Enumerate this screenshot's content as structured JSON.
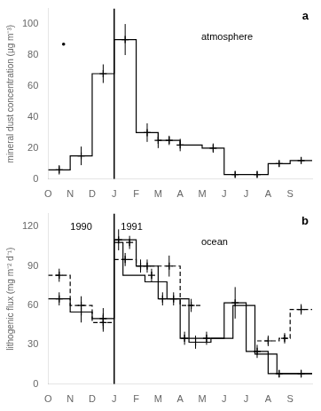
{
  "chart_data": [
    {
      "type": "line",
      "panel_label": "a",
      "ylabel": "mineral dust concentration (μg m⁻³)",
      "annotations": [
        {
          "text": "atmosphere"
        }
      ],
      "xlim": [
        0,
        12
      ],
      "xticks": [
        {
          "value": 0,
          "label": "O"
        },
        {
          "value": 1,
          "label": "N"
        },
        {
          "value": 2,
          "label": "D"
        },
        {
          "value": 3,
          "label": "J"
        },
        {
          "value": 4,
          "label": "F"
        },
        {
          "value": 5,
          "label": "M"
        },
        {
          "value": 6,
          "label": "A"
        },
        {
          "value": 7,
          "label": "M"
        },
        {
          "value": 8,
          "label": "J"
        },
        {
          "value": 9,
          "label": "J"
        },
        {
          "value": 10,
          "label": "A"
        },
        {
          "value": 11,
          "label": "S"
        }
      ],
      "ylim": [
        0,
        110
      ],
      "yticks": [
        0,
        20,
        40,
        60,
        80,
        100
      ],
      "grid": false,
      "color": "#000000",
      "series": [
        {
          "type": "line",
          "line_style": "solid",
          "x": [
            0,
            1,
            1,
            2,
            2,
            3,
            3,
            4,
            4,
            5,
            5,
            6,
            6,
            7,
            7,
            8,
            8,
            9,
            9,
            10,
            10,
            11,
            11,
            12
          ],
          "values": [
            6,
            6,
            15,
            15,
            68,
            68,
            90,
            90,
            30,
            30,
            25,
            25,
            22,
            22,
            20,
            20,
            3,
            3,
            3,
            3,
            10,
            10,
            12,
            12
          ]
        },
        {
          "type": "scatter",
          "marker": "plus",
          "x": [
            0.5,
            1.5,
            2.5,
            3.5,
            4.5,
            5.0,
            5.5,
            6.0,
            7.5,
            8.5,
            9.5,
            10.5,
            11.5
          ],
          "values": [
            6,
            15,
            68,
            90,
            30,
            25,
            25,
            22,
            20,
            3,
            3,
            10,
            12
          ],
          "error": [
            3,
            6,
            6,
            10,
            6,
            5,
            3,
            4,
            3,
            2,
            2,
            2,
            2
          ]
        },
        {
          "type": "scatter",
          "marker": "dot",
          "x": [
            0.7
          ],
          "values": [
            87
          ]
        },
        {
          "type": "vline",
          "x": [
            3.0
          ]
        }
      ]
    },
    {
      "type": "line",
      "panel_label": "b",
      "ylabel": "lithogenic flux (mg m⁻² d⁻¹)",
      "annotations": [
        {
          "text": "ocean"
        },
        {
          "text": "1990",
          "x": 1.5,
          "y": 123
        },
        {
          "text": "1991",
          "x": 3.8,
          "y": 123
        }
      ],
      "xlim": [
        0,
        12
      ],
      "xticks": [
        {
          "value": 0,
          "label": "O"
        },
        {
          "value": 1,
          "label": "N"
        },
        {
          "value": 2,
          "label": "D"
        },
        {
          "value": 3,
          "label": "J"
        },
        {
          "value": 4,
          "label": "F"
        },
        {
          "value": 5,
          "label": "M"
        },
        {
          "value": 6,
          "label": "A"
        },
        {
          "value": 7,
          "label": "M"
        },
        {
          "value": 8,
          "label": "J"
        },
        {
          "value": 9,
          "label": "J"
        },
        {
          "value": 10,
          "label": "A"
        },
        {
          "value": 11,
          "label": "S"
        }
      ],
      "ylim": [
        0,
        130
      ],
      "yticks": [
        0,
        30,
        60,
        90,
        120
      ],
      "grid": false,
      "color": "#000000",
      "series": [
        {
          "type": "line",
          "line_style": "solid",
          "x": [
            0,
            1,
            1,
            2,
            2,
            3,
            3,
            4,
            4,
            5,
            5,
            6,
            6,
            7,
            7,
            8,
            8,
            9,
            9,
            10,
            10,
            11,
            11,
            12
          ],
          "values": [
            65,
            65,
            55,
            55,
            50,
            50,
            110,
            110,
            90,
            90,
            65,
            65,
            35,
            35,
            35,
            35,
            62,
            62,
            25,
            25,
            8,
            8,
            8,
            8
          ]
        },
        {
          "type": "line",
          "line_style": "solid",
          "x": [
            3,
            3.4,
            3.4,
            4.4,
            4.4,
            5.4,
            5.4,
            6.4,
            6.4,
            7.4,
            7.4,
            8.4,
            8.4,
            9.4,
            9.4,
            10.4,
            10.4,
            12
          ],
          "values": [
            108,
            108,
            83,
            83,
            78,
            78,
            65,
            65,
            32,
            32,
            35,
            35,
            60,
            60,
            23,
            23,
            8,
            8
          ]
        },
        {
          "type": "line",
          "line_style": "dashed",
          "x": [
            0,
            1,
            1,
            2,
            2,
            3
          ],
          "values": [
            83,
            83,
            60,
            60,
            47,
            47
          ]
        },
        {
          "type": "line",
          "line_style": "dashed",
          "x": [
            3,
            4,
            4,
            5,
            5,
            6,
            6,
            7
          ],
          "values": [
            95,
            95,
            90,
            90,
            90,
            90,
            60,
            60
          ]
        },
        {
          "type": "line",
          "line_style": "dashed",
          "x": [
            9.5,
            10.5,
            10.5,
            11,
            11,
            12
          ],
          "values": [
            33,
            33,
            35,
            35,
            57,
            57
          ]
        },
        {
          "type": "scatter",
          "marker": "plus",
          "x": [
            0.5,
            1.5,
            2.5,
            3.2,
            3.7,
            4.2,
            4.7,
            5.2,
            5.7,
            6.2,
            6.7,
            7.2,
            8.5,
            9.5,
            10.5,
            11.5
          ],
          "values": [
            65,
            55,
            50,
            110,
            108,
            90,
            83,
            65,
            65,
            35,
            32,
            35,
            62,
            25,
            8,
            8
          ],
          "error": [
            5,
            8,
            8,
            8,
            5,
            5,
            5,
            5,
            5,
            5,
            5,
            5,
            12,
            5,
            3,
            3
          ]
        },
        {
          "type": "scatter",
          "marker": "plus",
          "x": [
            0.5,
            1.5,
            2.5
          ],
          "values": [
            83,
            60,
            47
          ],
          "error": [
            5,
            7,
            7
          ]
        },
        {
          "type": "scatter",
          "marker": "plus",
          "x": [
            3.5,
            4.5,
            5.5,
            6.5
          ],
          "values": [
            95,
            90,
            90,
            60
          ],
          "error": [
            5,
            5,
            8,
            5
          ]
        },
        {
          "type": "scatter",
          "marker": "plus",
          "x": [
            10.0,
            10.75,
            11.5
          ],
          "values": [
            33,
            35,
            57
          ],
          "error": [
            4,
            4,
            4
          ]
        },
        {
          "type": "vline",
          "x": [
            3.0
          ]
        }
      ]
    }
  ]
}
